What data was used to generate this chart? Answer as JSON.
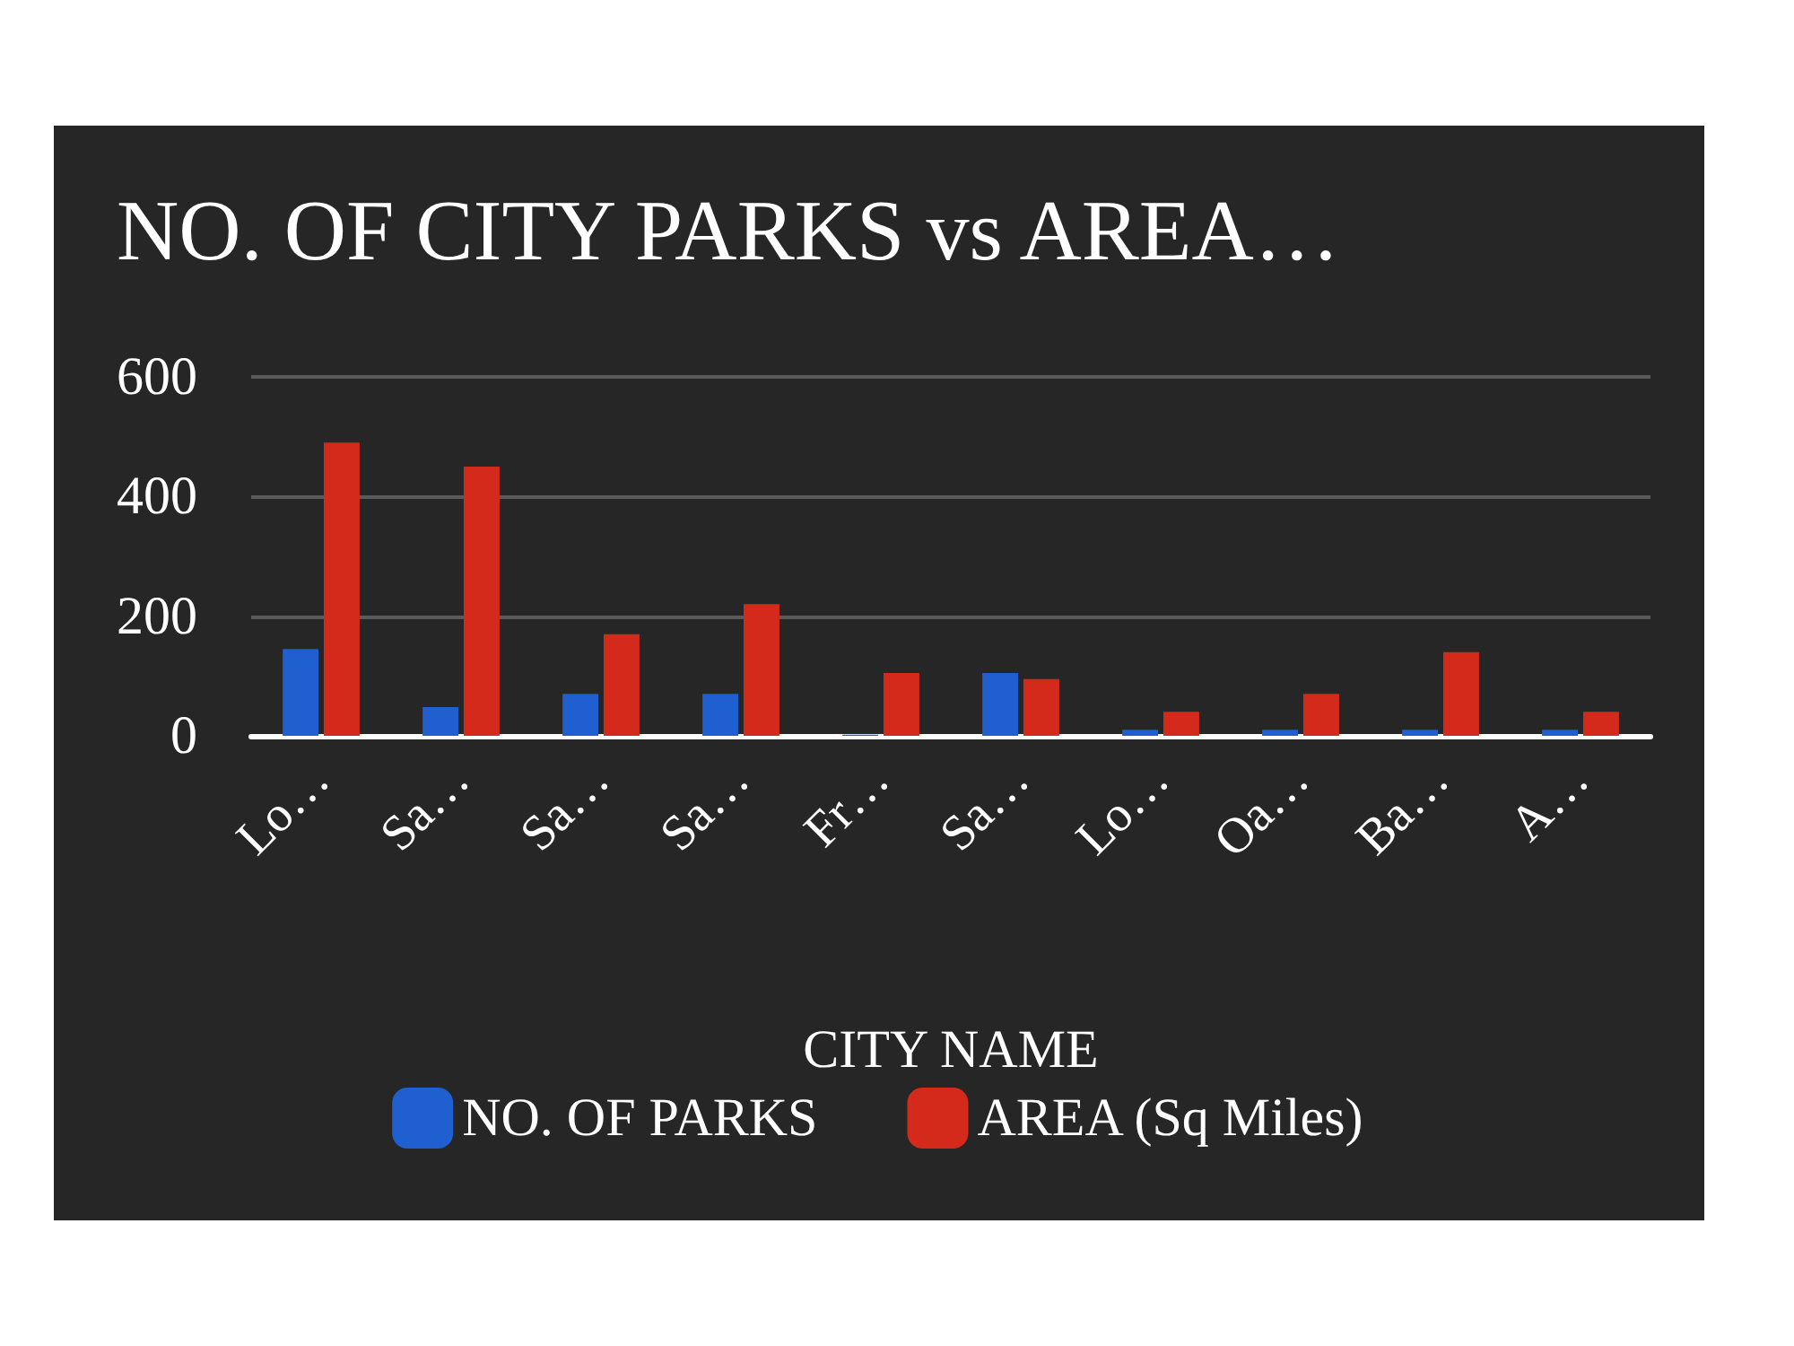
{
  "chart_data": {
    "type": "bar",
    "title": "NO. OF CITY PARKS vs AREA…",
    "xlabel": "CITY NAME",
    "categories": [
      "Lo…",
      "Sa…",
      "Sa…",
      "Sa…",
      "Fr…",
      "Sa…",
      "Lo…",
      "Oa…",
      "Ba…",
      "A…"
    ],
    "series": [
      {
        "name": "NO. OF PARKS",
        "color": "#1f5fd0",
        "values": [
          145,
          48,
          70,
          70,
          2,
          105,
          10,
          10,
          10,
          10
        ]
      },
      {
        "name": "AREA (Sq Miles)",
        "color": "#d42a1c",
        "values": [
          490,
          450,
          170,
          220,
          105,
          95,
          40,
          70,
          140,
          40
        ]
      }
    ],
    "ylim": [
      0,
      600
    ],
    "yticks": [
      0,
      200,
      400,
      600
    ],
    "grid": "y",
    "legend": "bottom"
  }
}
